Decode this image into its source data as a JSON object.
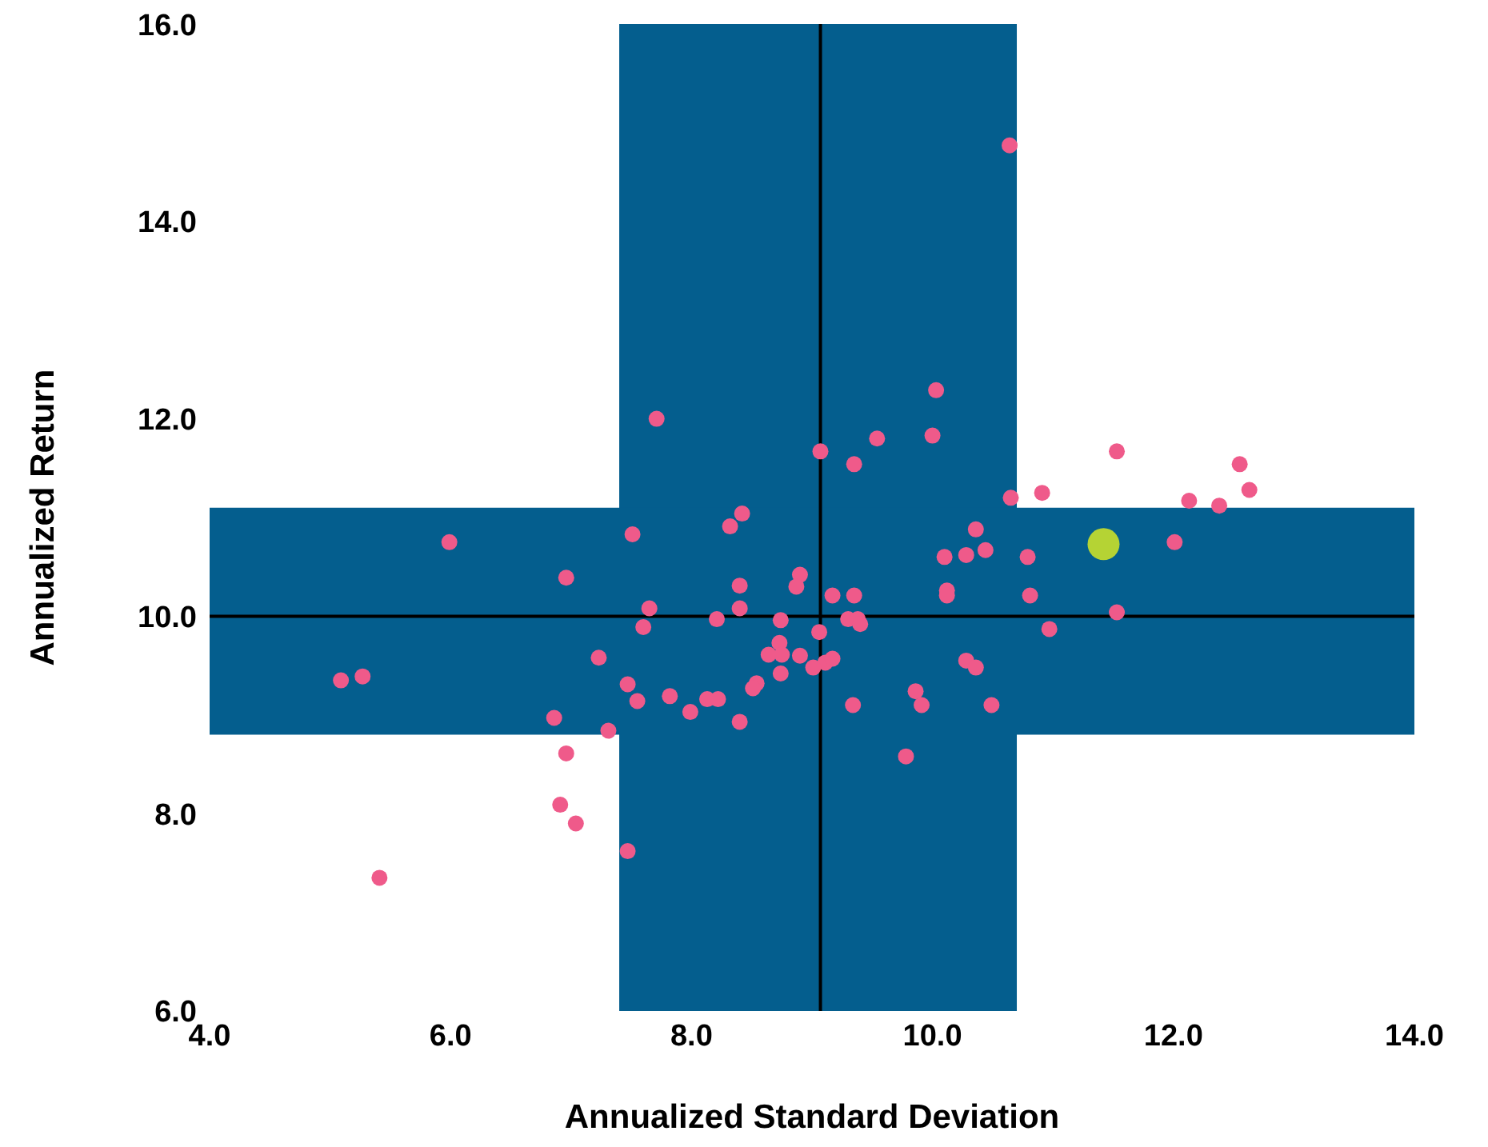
{
  "chart_data": {
    "type": "scatter",
    "xlabel": "Annualized Standard Deviation",
    "ylabel": "Annualized Return",
    "xlim": [
      4,
      14
    ],
    "xticks": [
      {
        "value": 4,
        "label": "4.0"
      },
      {
        "value": 6,
        "label": "6.0"
      },
      {
        "value": 8,
        "label": "8.0"
      },
      {
        "value": 10,
        "label": "10.0"
      },
      {
        "value": 12,
        "label": "12.0"
      },
      {
        "value": 14,
        "label": "14.0"
      }
    ],
    "ylim": [
      6,
      16
    ],
    "yticks": [
      {
        "value": 6,
        "label": "6.0"
      },
      {
        "value": 8,
        "label": "8.0"
      },
      {
        "value": 10,
        "label": "10.0"
      },
      {
        "value": 12,
        "label": "12.0"
      },
      {
        "value": 14,
        "label": "14.0"
      },
      {
        "value": 16,
        "label": "16.0"
      }
    ],
    "grid": false,
    "legend": false,
    "marker": "circle",
    "bands": [
      {
        "axis": "x",
        "from": 7.4,
        "to": 10.7,
        "color": "#045e8e"
      },
      {
        "axis": "y",
        "from": 8.8,
        "to": 11.1,
        "color": "#045e8e"
      }
    ],
    "ref_lines": [
      {
        "axis": "x",
        "value": 9.07,
        "color": "#000000"
      },
      {
        "axis": "y",
        "value": 10.0,
        "color": "#000000"
      }
    ],
    "series": [
      {
        "color": "#ef5a8a",
        "x": [
          10.64,
          10.03,
          7.71,
          10.0,
          9.54,
          9.07,
          9.35,
          11.53,
          12.55,
          10.91,
          10.65,
          12.63,
          12.13,
          12.38,
          8.42,
          8.32,
          7.51,
          5.99,
          10.36,
          10.28,
          10.1,
          10.44,
          10.79,
          12.01,
          6.96,
          8.9,
          8.87,
          8.4,
          9.17,
          9.35,
          10.12,
          10.12,
          10.81,
          8.4,
          7.65,
          7.6,
          8.21,
          8.74,
          9.3,
          9.38,
          9.4,
          9.06,
          11.53,
          10.97,
          8.73,
          8.64,
          8.75,
          8.9,
          9.11,
          9.01,
          9.17,
          8.74,
          7.23,
          10.28,
          10.36,
          5.09,
          5.27,
          7.47,
          8.54,
          8.51,
          9.86,
          7.82,
          8.13,
          8.22,
          7.55,
          9.34,
          9.91,
          10.49,
          7.99,
          8.4,
          6.86,
          7.31,
          9.78,
          6.96,
          6.91,
          7.04,
          7.47,
          5.41
        ],
        "values": [
          14.77,
          12.29,
          12.0,
          11.83,
          11.8,
          11.67,
          11.54,
          11.67,
          11.54,
          11.25,
          11.2,
          11.28,
          11.17,
          11.12,
          11.04,
          10.91,
          10.83,
          10.75,
          10.88,
          10.62,
          10.6,
          10.67,
          10.6,
          10.75,
          10.39,
          10.42,
          10.3,
          10.31,
          10.21,
          10.21,
          10.26,
          10.21,
          10.21,
          10.08,
          10.08,
          9.89,
          9.97,
          9.96,
          9.97,
          9.97,
          9.92,
          9.84,
          10.04,
          9.87,
          9.73,
          9.61,
          9.61,
          9.6,
          9.53,
          9.48,
          9.57,
          9.42,
          9.58,
          9.55,
          9.48,
          9.35,
          9.39,
          9.31,
          9.32,
          9.27,
          9.24,
          9.19,
          9.16,
          9.16,
          9.14,
          9.1,
          9.1,
          9.1,
          9.03,
          8.93,
          8.97,
          8.84,
          8.58,
          8.61,
          8.09,
          7.9,
          7.62,
          7.35
        ]
      },
      {
        "color": "#b5d334",
        "x": [
          11.42
        ],
        "values": [
          10.73
        ]
      }
    ]
  }
}
